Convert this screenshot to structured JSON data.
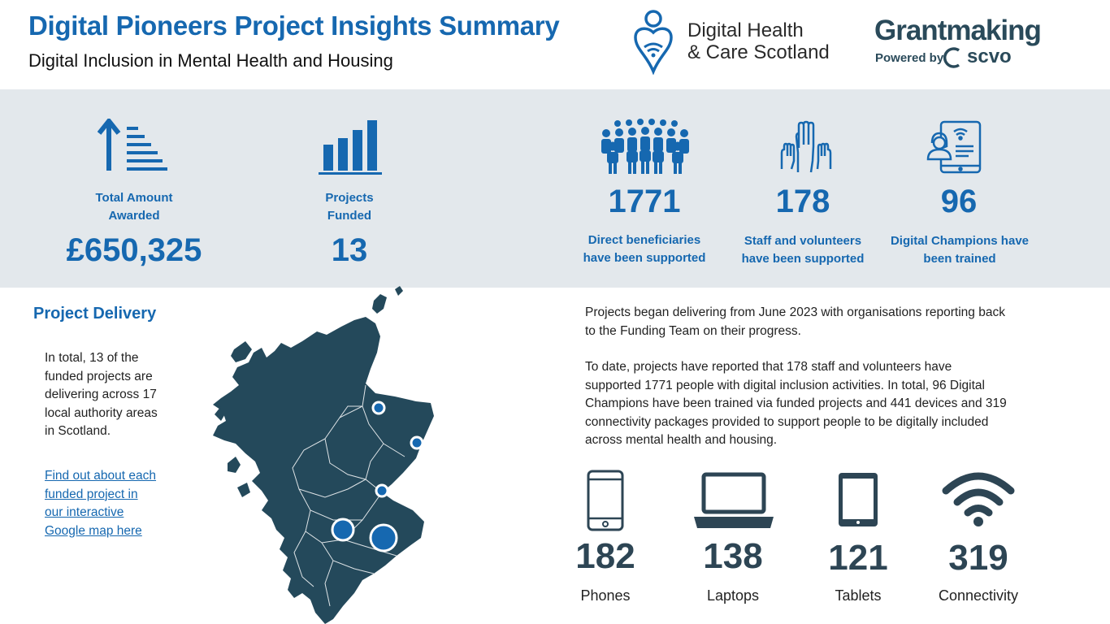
{
  "header": {
    "title": "Digital Pioneers Project Insights Summary",
    "subtitle": "Digital Inclusion in Mental Health and Housing",
    "partner_logo_line1": "Digital Health",
    "partner_logo_line2": "& Care Scotland",
    "grantmaking_word": "Grantmaking",
    "grantmaking_powered": "Powered by",
    "grantmaking_scvo": "scvo"
  },
  "stats": {
    "total_amount": {
      "label_line1": "Total Amount",
      "label_line2": "Awarded",
      "value": "£650,325",
      "icon": "arrow-up-lines-icon"
    },
    "projects_funded": {
      "label_line1": "Projects",
      "label_line2": "Funded",
      "value": "13",
      "icon": "bar-chart-icon"
    },
    "beneficiaries": {
      "value": "1771",
      "label_line1": "Direct beneficiaries",
      "label_line2": "have been supported",
      "icon": "crowd-icon"
    },
    "staff": {
      "value": "178",
      "label_line1": "Staff and volunteers",
      "label_line2": "have been supported",
      "icon": "raised-hands-icon"
    },
    "champions": {
      "value": "96",
      "label_line1": "Digital Champions have",
      "label_line2": "been trained",
      "icon": "tablet-support-icon"
    }
  },
  "delivery": {
    "heading": "Project Delivery",
    "body_lines": [
      "In total, 13 of the",
      "funded projects are",
      "delivering across 17",
      "local authority areas",
      "in Scotland."
    ],
    "link_lines": [
      "Find out about each",
      "funded project in",
      "our interactive",
      "Google map here"
    ]
  },
  "summary": {
    "para1_lines": [
      "Projects began delivering from June 2023 with organisations reporting back",
      "to the Funding Team on their progress."
    ],
    "para2_lines": [
      "To date,  projects have reported that 178 staff and volunteers have",
      "supported 1771 people with digital inclusion activities.  In total, 96 Digital",
      "Champions have been trained via funded projects and 441 devices and 319",
      "connectivity packages provided to support people to be digitally included",
      "across mental health and housing."
    ]
  },
  "devices": [
    {
      "value": "182",
      "label": "Phones",
      "icon": "phone-icon"
    },
    {
      "value": "138",
      "label": "Laptops",
      "icon": "laptop-icon"
    },
    {
      "value": "121",
      "label": "Tablets",
      "icon": "tablet-icon"
    },
    {
      "value": "319",
      "label": "Connectivity",
      "icon": "wifi-icon"
    }
  ],
  "colors": {
    "accent_blue": "#1668b0",
    "band_grey": "#e3e8ec",
    "map_dark": "#24495b",
    "device_dark": "#2d4554"
  }
}
